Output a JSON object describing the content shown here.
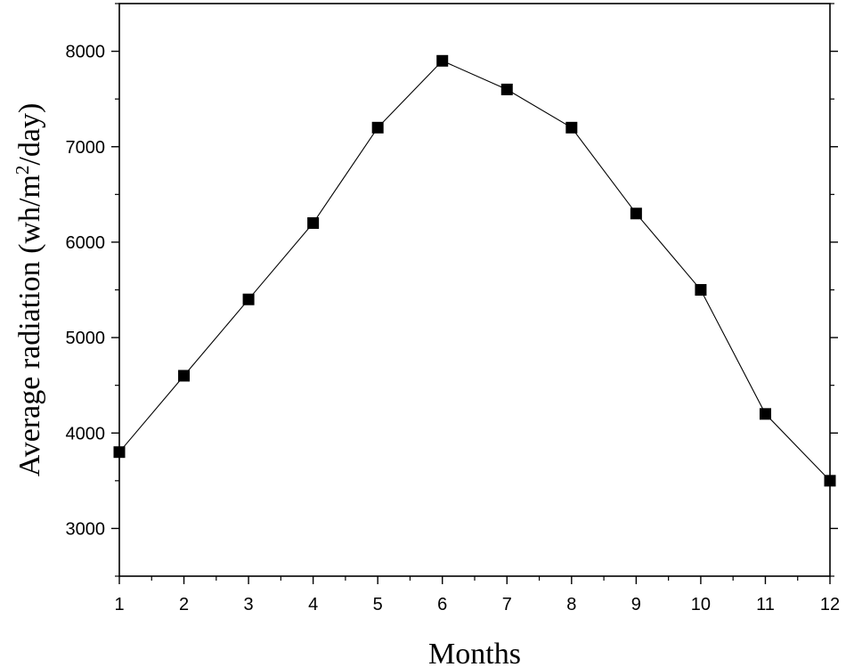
{
  "chart_data": {
    "type": "line",
    "title": "",
    "xlabel": "Months",
    "ylabel": {
      "prefix": "Average radiation (wh/m",
      "superscript": "2",
      "suffix": "/day)"
    },
    "x": [
      1,
      2,
      3,
      4,
      5,
      6,
      7,
      8,
      9,
      10,
      11,
      12
    ],
    "x_tick_labels": [
      "1",
      "2",
      "3",
      "4",
      "5",
      "6",
      "7",
      "8",
      "9",
      "10",
      "11",
      "12"
    ],
    "y_tick_values": [
      3000,
      4000,
      5000,
      6000,
      7000,
      8000
    ],
    "y_tick_labels": [
      "3000",
      "4000",
      "5000",
      "6000",
      "7000",
      "8000"
    ],
    "series": [
      {
        "values": [
          3800,
          4600,
          5400,
          6200,
          7200,
          7900,
          7600,
          7200,
          6300,
          5500,
          4200,
          3500
        ],
        "marker": "square",
        "color": "#000000"
      }
    ],
    "xlim": [
      1,
      12
    ],
    "ylim": [
      2500,
      8500
    ],
    "grid": false,
    "legend": "none"
  }
}
